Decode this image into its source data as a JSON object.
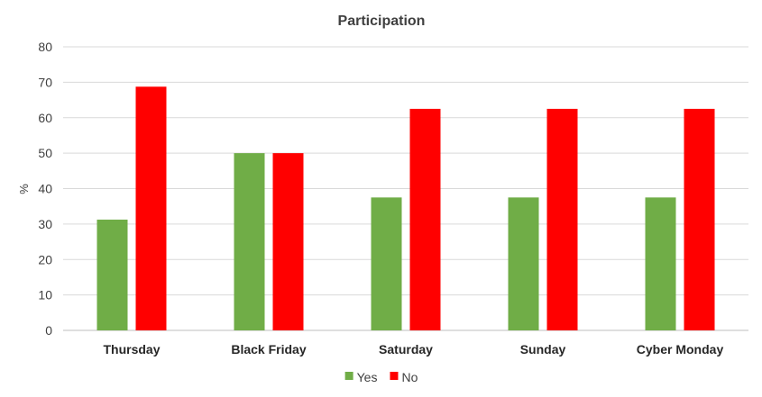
{
  "chart_data": {
    "type": "bar",
    "title": "Participation",
    "xlabel": "",
    "ylabel": "%",
    "ylim": [
      0,
      80
    ],
    "yticks": [
      0,
      10,
      20,
      30,
      40,
      50,
      60,
      70,
      80
    ],
    "categories": [
      "Thursday",
      "Black Friday",
      "Saturday",
      "Sunday",
      "Cyber Monday"
    ],
    "series": [
      {
        "name": "Yes",
        "color": "#70ad47",
        "values": [
          31.25,
          50,
          37.5,
          37.5,
          37.5
        ]
      },
      {
        "name": "No",
        "color": "#ff0000",
        "values": [
          68.75,
          50,
          62.5,
          62.5,
          62.5
        ]
      }
    ],
    "grid": true,
    "legend": "bottom-center"
  }
}
